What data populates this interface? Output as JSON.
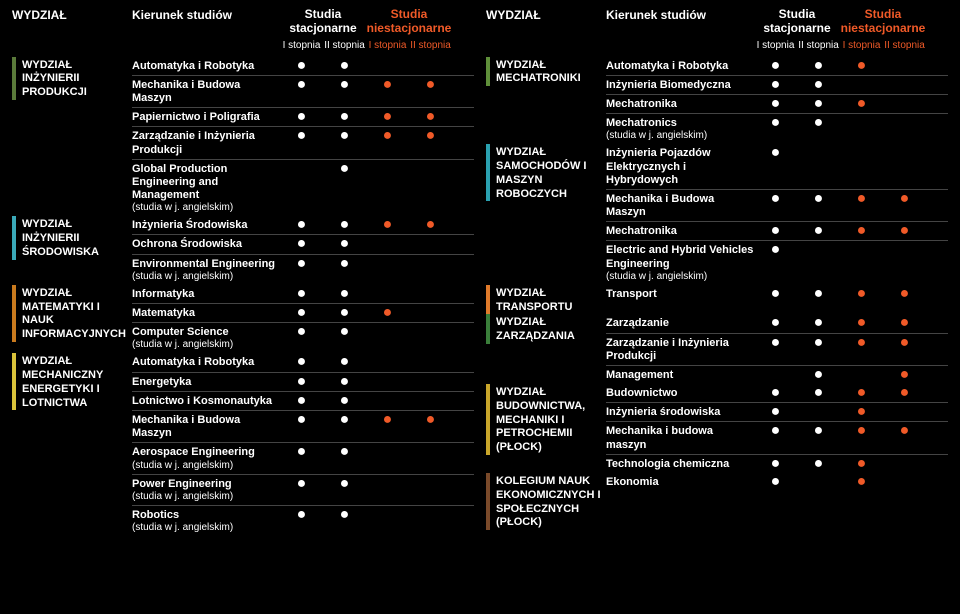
{
  "headers": {
    "dept": "WYDZIAŁ",
    "kier": "Kierunek studiów",
    "stac": "Studia stacjonarne",
    "niestac": "Studia niestacjonarne",
    "s1": "I stopnia",
    "s2": "II stopnia"
  },
  "colors": {
    "orange": "#f05a28",
    "ticks": [
      "#5a7a3a",
      "#3aa9b8",
      "#c97a1e",
      "#d9c23a",
      "#5f8f3a",
      "#2aa1b0",
      "#e07a2a",
      "#3a7e3a",
      "#c9a62a",
      "#7a4a2a"
    ]
  },
  "left": [
    {
      "dept": "WYDZIAŁ INŻYNIERII PRODUKCJI",
      "tick": 0,
      "rows": [
        {
          "n": "Automatyka i Robotyka",
          "d": [
            "w",
            "w",
            "",
            ""
          ]
        },
        {
          "n": "Mechanika i Budowa Maszyn",
          "d": [
            "w",
            "w",
            "o",
            "o"
          ]
        },
        {
          "n": "Papiernictwo i Poligrafia",
          "d": [
            "w",
            "w",
            "o",
            "o"
          ]
        },
        {
          "n": "Zarządzanie i Inżynieria Produkcji",
          "d": [
            "w",
            "w",
            "o",
            "o"
          ]
        },
        {
          "n": "Global Production Engineering and Management",
          "eng": "(studia w j. angielskim)",
          "d": [
            "",
            "w",
            "",
            ""
          ]
        }
      ]
    },
    {
      "dept": "WYDZIAŁ INŻYNIERII ŚRODOWISKA",
      "tick": 1,
      "rows": [
        {
          "n": "Inżynieria Środowiska",
          "d": [
            "w",
            "w",
            "o",
            "o"
          ]
        },
        {
          "n": "Ochrona Środowiska",
          "d": [
            "w",
            "w",
            "",
            ""
          ]
        },
        {
          "n": "Environmental Engineering",
          "eng": "(studia w j. angielskim)",
          "d": [
            "w",
            "w",
            "",
            ""
          ]
        }
      ]
    },
    {
      "dept": "WYDZIAŁ MATEMATYKI I NAUK INFORMACYJNYCH",
      "tick": 2,
      "rows": [
        {
          "n": "Informatyka",
          "d": [
            "w",
            "w",
            "",
            ""
          ]
        },
        {
          "n": "Matematyka",
          "d": [
            "w",
            "w",
            "o",
            ""
          ]
        },
        {
          "n": "Computer Science",
          "eng": "(studia w j. angielskim)",
          "d": [
            "w",
            "w",
            "",
            ""
          ]
        }
      ]
    },
    {
      "dept": "WYDZIAŁ MECHANICZNY ENERGETYKI I LOTNICTWA",
      "tick": 3,
      "rows": [
        {
          "n": "Automatyka i Robotyka",
          "d": [
            "w",
            "w",
            "",
            ""
          ]
        },
        {
          "n": "Energetyka",
          "d": [
            "w",
            "w",
            "",
            ""
          ]
        },
        {
          "n": "Lotnictwo i Kosmonautyka",
          "d": [
            "w",
            "w",
            "",
            ""
          ]
        },
        {
          "n": "Mechanika i Budowa Maszyn",
          "d": [
            "w",
            "w",
            "o",
            "o"
          ]
        },
        {
          "n": "Aerospace Engineering",
          "eng": "(studia w j. angielskim)",
          "d": [
            "w",
            "w",
            "",
            ""
          ]
        },
        {
          "n": "Power Engineering",
          "eng": "(studia w j. angielskim)",
          "d": [
            "w",
            "w",
            "",
            ""
          ]
        },
        {
          "n": "Robotics",
          "eng": "(studia w j. angielskim)",
          "d": [
            "w",
            "w",
            "",
            ""
          ]
        }
      ]
    }
  ],
  "right": [
    {
      "dept": "WYDZIAŁ MECHATRONIKI",
      "tick": 4,
      "rows": [
        {
          "n": "Automatyka i Robotyka",
          "d": [
            "w",
            "w",
            "o",
            ""
          ]
        },
        {
          "n": "Inżynieria Biomedyczna",
          "d": [
            "w",
            "w",
            "",
            ""
          ]
        },
        {
          "n": "Mechatronika",
          "d": [
            "w",
            "w",
            "o",
            ""
          ]
        },
        {
          "n": "Mechatronics",
          "eng": "(studia w j. angielskim)",
          "d": [
            "w",
            "w",
            "",
            ""
          ]
        }
      ]
    },
    {
      "dept": "WYDZIAŁ SAMOCHODÓW I MASZYN ROBOCZYCH",
      "tick": 5,
      "rows": [
        {
          "n": "Inżynieria Pojazdów Elektrycznych i Hybrydowych",
          "d": [
            "w",
            "",
            "",
            ""
          ]
        },
        {
          "n": "Mechanika i Budowa Maszyn",
          "d": [
            "w",
            "w",
            "o",
            "o"
          ]
        },
        {
          "n": "Mechatronika",
          "d": [
            "w",
            "w",
            "o",
            "o"
          ]
        },
        {
          "n": "Electric and Hybrid Vehicles Engineering",
          "eng": "(studia w j. angielskim)",
          "d": [
            "w",
            "",
            "",
            ""
          ]
        }
      ]
    },
    {
      "dept": "WYDZIAŁ TRANSPORTU",
      "tick": 6,
      "rows": [
        {
          "n": "Transport",
          "d": [
            "w",
            "w",
            "o",
            "o"
          ]
        }
      ]
    },
    {
      "dept": "WYDZIAŁ ZARZĄDZANIA",
      "tick": 7,
      "rows": [
        {
          "n": "Zarządzanie",
          "d": [
            "w",
            "w",
            "o",
            "o"
          ]
        },
        {
          "n": "Zarządzanie i Inżynieria Produkcji",
          "d": [
            "w",
            "w",
            "o",
            "o"
          ]
        },
        {
          "n": "Management",
          "d": [
            "",
            "w",
            "",
            "o"
          ]
        }
      ]
    },
    {
      "dept": "WYDZIAŁ BUDOWNICTWA, MECHANIKI I PETROCHEMII (PŁOCK)",
      "tick": 8,
      "rows": [
        {
          "n": "Budownictwo",
          "d": [
            "w",
            "w",
            "o",
            "o"
          ]
        },
        {
          "n": "Inżynieria środowiska",
          "d": [
            "w",
            "",
            "o",
            ""
          ]
        },
        {
          "n": "Mechanika i budowa maszyn",
          "d": [
            "w",
            "w",
            "o",
            "o"
          ]
        },
        {
          "n": "Technologia chemiczna",
          "d": [
            "w",
            "w",
            "o",
            ""
          ]
        }
      ]
    },
    {
      "dept": "KOLEGIUM NAUK EKONOMICZNYCH I SPOŁECZNYCH (PŁOCK)",
      "tick": 9,
      "rows": [
        {
          "n": "Ekonomia",
          "d": [
            "w",
            "",
            "o",
            ""
          ]
        }
      ]
    }
  ]
}
